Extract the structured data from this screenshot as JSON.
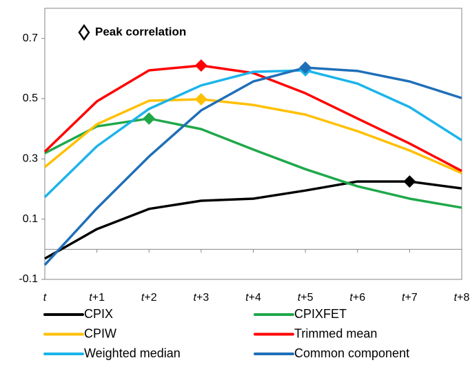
{
  "chart_data": {
    "type": "line",
    "annotation": "Peak correlation",
    "categories": [
      "t",
      "t+1",
      "t+2",
      "t+3",
      "t+4",
      "t+5",
      "t+6",
      "t+7",
      "t+8"
    ],
    "ylim": [
      -0.1,
      0.8
    ],
    "yticks": [
      -0.1,
      0.1,
      0.3,
      0.5,
      0.7
    ],
    "series": [
      {
        "name": "CPIX",
        "color": "#000000",
        "peak": 7,
        "values": [
          -0.031,
          0.067,
          0.134,
          0.161,
          0.168,
          0.195,
          0.225,
          0.225,
          0.202
        ]
      },
      {
        "name": "CPIXFET",
        "color": "#1fa84a",
        "peak": 2,
        "values": [
          0.319,
          0.408,
          0.434,
          0.399,
          0.331,
          0.266,
          0.209,
          0.168,
          0.138
        ]
      },
      {
        "name": "CPIW",
        "color": "#ffc000",
        "peak": 3,
        "values": [
          0.273,
          0.415,
          0.493,
          0.498,
          0.479,
          0.447,
          0.392,
          0.328,
          0.253
        ]
      },
      {
        "name": "Trimmed mean",
        "color": "#ff0000",
        "peak": 3,
        "values": [
          0.324,
          0.491,
          0.594,
          0.61,
          0.585,
          0.518,
          0.434,
          0.351,
          0.26
        ]
      },
      {
        "name": "Weighted median",
        "color": "#1cb4ea",
        "peak": 5,
        "values": [
          0.173,
          0.342,
          0.466,
          0.544,
          0.589,
          0.594,
          0.55,
          0.472,
          0.362
        ]
      },
      {
        "name": "Common component",
        "color": "#1f6fb8",
        "peak": 5,
        "values": [
          -0.052,
          0.136,
          0.308,
          0.461,
          0.557,
          0.603,
          0.592,
          0.557,
          0.502
        ]
      }
    ]
  }
}
